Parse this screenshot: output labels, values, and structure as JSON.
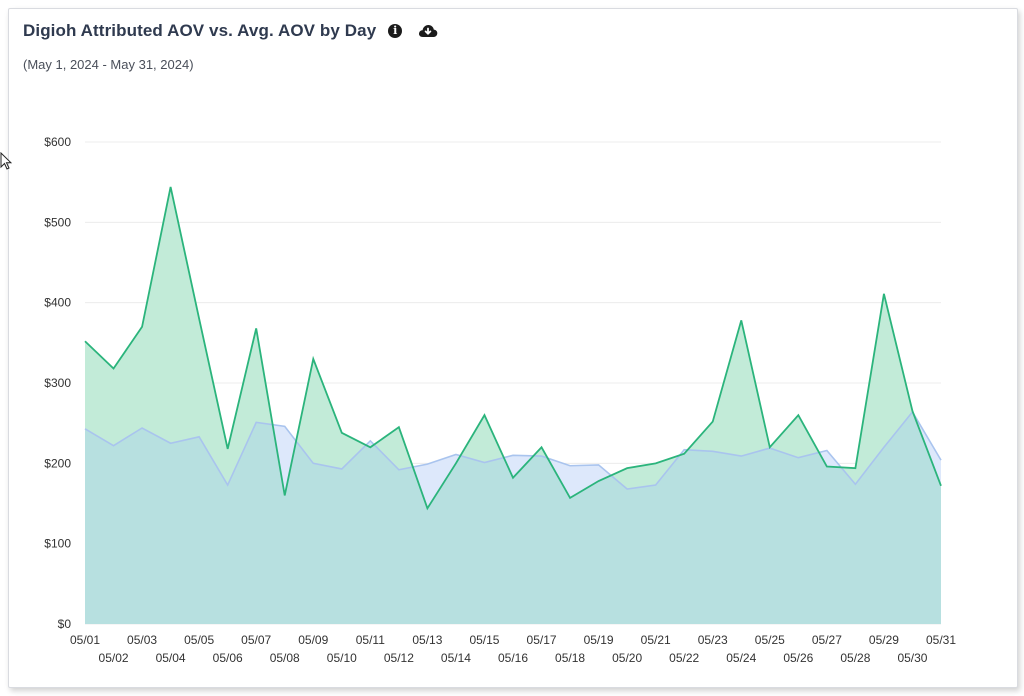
{
  "header": {
    "title": "Digioh Attributed AOV vs. Avg. AOV by Day",
    "subtitle": "(May 1, 2024 - May 31, 2024)",
    "info_icon": "info-icon",
    "download_icon": "cloud-download-icon"
  },
  "colors": {
    "attributed_line": "#2bb47c",
    "attributed_fill": "#c2ebd8",
    "average_line": "#a9c4ee",
    "average_fill": "#dde8fb",
    "overlap_fill": "#b7e0e0",
    "grid": "#ececec"
  },
  "chart_data": {
    "type": "area",
    "title": "Digioh Attributed AOV vs. Avg. AOV by Day",
    "subtitle": "(May 1, 2024 - May 31, 2024)",
    "x": [
      "05/01",
      "05/02",
      "05/03",
      "05/04",
      "05/05",
      "05/06",
      "05/07",
      "05/08",
      "05/09",
      "05/10",
      "05/11",
      "05/12",
      "05/13",
      "05/14",
      "05/15",
      "05/16",
      "05/17",
      "05/18",
      "05/19",
      "05/20",
      "05/21",
      "05/22",
      "05/23",
      "05/24",
      "05/25",
      "05/26",
      "05/27",
      "05/28",
      "05/29",
      "05/30",
      "05/31"
    ],
    "series": [
      {
        "values": [
          352,
          318,
          370,
          544,
          380,
          218,
          368,
          160,
          330,
          238,
          220,
          245,
          144,
          200,
          260,
          182,
          220,
          157,
          178,
          194,
          200,
          212,
          252,
          378,
          220,
          260,
          196,
          194,
          411,
          265,
          172
        ]
      },
      {
        "values": [
          243,
          222,
          244,
          225,
          233,
          173,
          251,
          246,
          200,
          193,
          228,
          192,
          199,
          211,
          201,
          210,
          209,
          197,
          198,
          168,
          173,
          217,
          215,
          209,
          219,
          207,
          216,
          174,
          220,
          264,
          204
        ]
      }
    ],
    "ylim": [
      0,
      600
    ],
    "yticks": [
      "$0",
      "$100",
      "$200",
      "$300",
      "$400",
      "$500",
      "$600"
    ],
    "grid": true,
    "legend": "none"
  }
}
